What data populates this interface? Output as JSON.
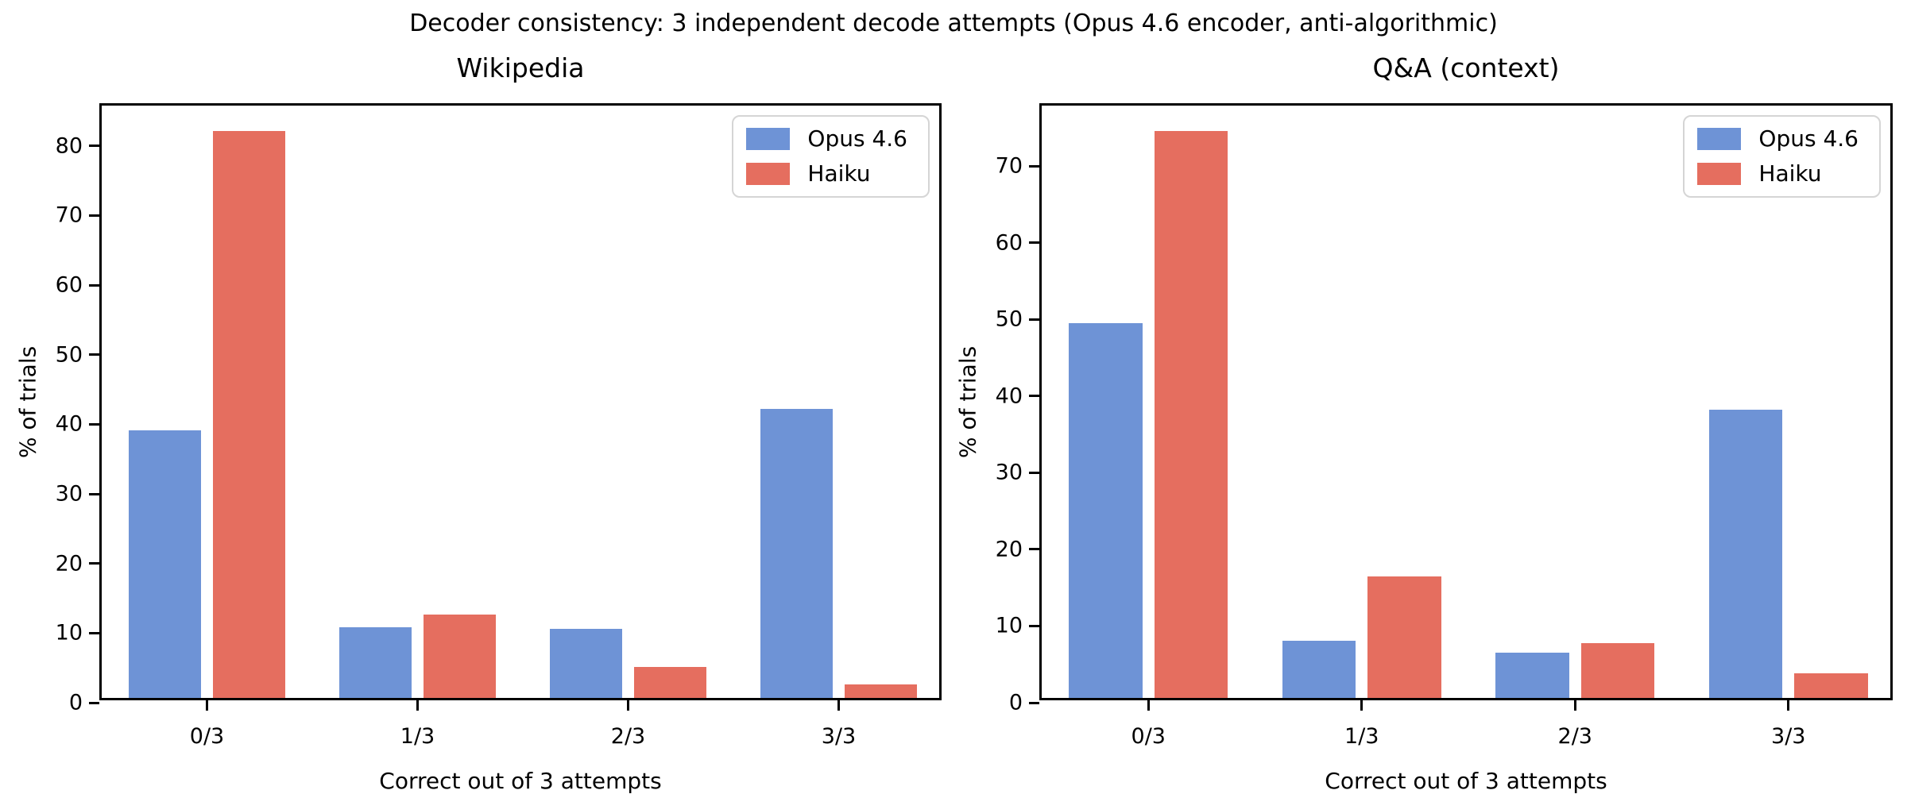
{
  "figure": {
    "suptitle": "Decoder consistency: 3 independent decode attempts (Opus 4.6 encoder, anti-algorithmic)"
  },
  "colors": {
    "opus": "#6e93d6",
    "haiku": "#e56e5f",
    "axis": "#000000",
    "legend_border": "#d5d5d5",
    "background": "#ffffff"
  },
  "chart_data": [
    {
      "type": "bar",
      "title": "Wikipedia",
      "xlabel": "Correct out of 3 attempts",
      "ylabel": "% of trials",
      "categories": [
        "0/3",
        "1/3",
        "2/3",
        "3/3"
      ],
      "series": [
        {
          "name": "Opus 4.6",
          "color_key": "opus",
          "values": [
            38.4,
            10.1,
            9.9,
            41.5
          ]
        },
        {
          "name": "Haiku",
          "color_key": "haiku",
          "values": [
            81.5,
            12.0,
            4.4,
            1.9
          ]
        }
      ],
      "ylim": [
        0,
        85.8
      ],
      "yticks": [
        0,
        10,
        20,
        30,
        40,
        50,
        60,
        70,
        80
      ],
      "grid": false,
      "legend_position": "upper right"
    },
    {
      "type": "bar",
      "title": "Q&A (context)",
      "xlabel": "Correct out of 3 attempts",
      "ylabel": "% of trials",
      "categories": [
        "0/3",
        "1/3",
        "2/3",
        "3/3"
      ],
      "series": [
        {
          "name": "Opus 4.6",
          "color_key": "opus",
          "values": [
            48.9,
            7.5,
            5.9,
            37.6
          ]
        },
        {
          "name": "Haiku",
          "color_key": "haiku",
          "values": [
            74.0,
            15.9,
            7.1,
            3.2
          ]
        }
      ],
      "ylim": [
        0,
        77.9
      ],
      "yticks": [
        0,
        10,
        20,
        30,
        40,
        50,
        60,
        70
      ],
      "grid": false,
      "legend_position": "upper right"
    }
  ]
}
